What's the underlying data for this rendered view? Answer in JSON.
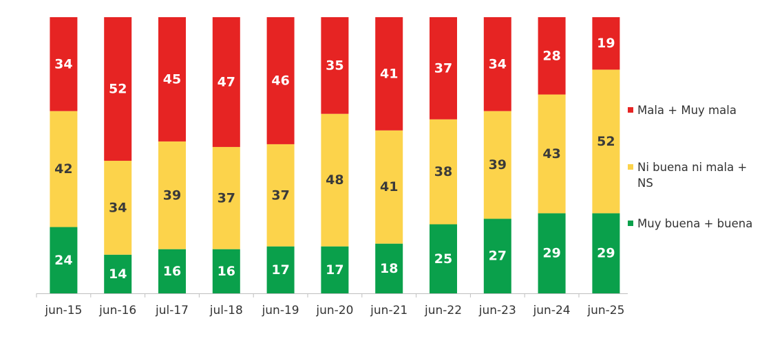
{
  "chart_data": {
    "type": "bar",
    "stacked": true,
    "percent": true,
    "categories": [
      "jun-15",
      "jun-16",
      "jul-17",
      "jul-18",
      "jun-19",
      "jun-20",
      "jun-21",
      "jun-22",
      "jun-23",
      "jun-24",
      "jun-25"
    ],
    "series": [
      {
        "name": "Muy buena + buena",
        "color": "#0aa04b",
        "label_color": "#ffffff",
        "values": [
          24,
          14,
          16,
          16,
          17,
          17,
          18,
          25,
          27,
          29,
          29
        ]
      },
      {
        "name": "Ni buena ni mala + NS",
        "color": "#fcd34b",
        "label_color": "#3a3a3a",
        "values": [
          42,
          34,
          39,
          37,
          37,
          48,
          41,
          38,
          39,
          43,
          52
        ]
      },
      {
        "name": "Mala + Muy mala",
        "color": "#e62423",
        "label_color": "#ffffff",
        "values": [
          34,
          52,
          45,
          47,
          46,
          35,
          41,
          37,
          34,
          28,
          19
        ]
      }
    ],
    "legend_order": [
      "Mala + Muy mala",
      "Ni buena ni mala + NS",
      "Muy buena + buena"
    ],
    "legend_position": "right",
    "ylim": [
      0,
      100
    ],
    "grid": false,
    "title": "",
    "xlabel": "",
    "ylabel": ""
  }
}
